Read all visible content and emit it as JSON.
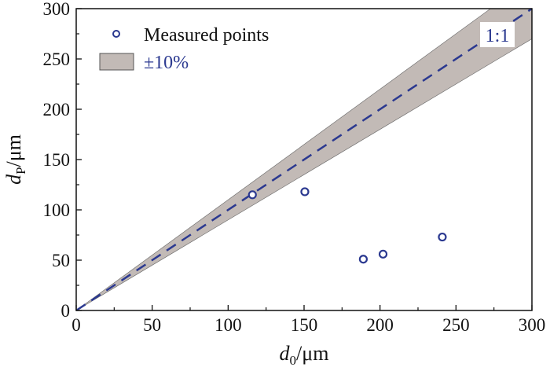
{
  "chart_data": {
    "type": "scatter",
    "title": "",
    "xlabel": {
      "main": "d",
      "sub": "0",
      "unit": "/μm"
    },
    "ylabel": {
      "main": "d",
      "sub": "P",
      "unit": "/μm"
    },
    "xlim": [
      0,
      300
    ],
    "ylim": [
      0,
      300
    ],
    "xticks": [
      0,
      50,
      100,
      150,
      200,
      250,
      300
    ],
    "yticks": [
      0,
      50,
      100,
      150,
      200,
      250,
      300
    ],
    "grid": false,
    "legend_placement": "top-left",
    "series": [
      {
        "name": "Measured points",
        "x": [
          116,
          150.5,
          189,
          202,
          241
        ],
        "y": [
          115,
          118,
          51,
          56,
          73
        ],
        "color": "#2b3990"
      }
    ],
    "reference_line": {
      "label": "1:1",
      "slope": 1,
      "color": "#2b3990"
    },
    "band": {
      "label": "±10%",
      "lower_factor": 0.9,
      "upper_factor": 1.1,
      "color": "#c2bab6"
    }
  }
}
